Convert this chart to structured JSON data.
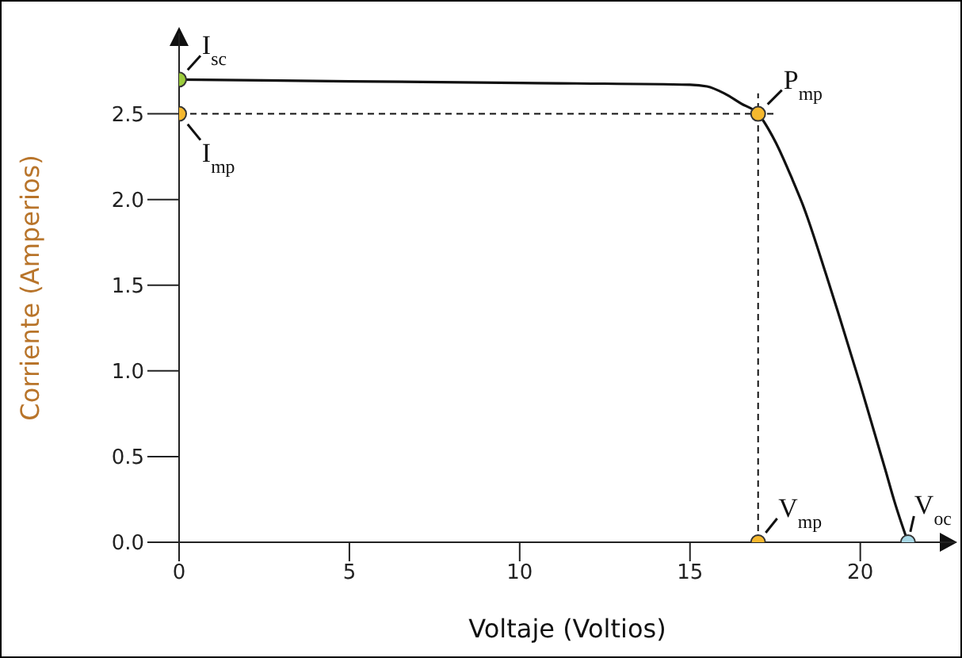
{
  "chart_data": {
    "type": "line",
    "xlabel": "Voltaje (Voltios)",
    "ylabel": "Corriente (Amperios)",
    "xlim": [
      0,
      22.8
    ],
    "ylim": [
      0,
      2.97
    ],
    "xticks": [
      0,
      5,
      10,
      15,
      20
    ],
    "yticks": [
      {
        "value": 0,
        "label": "0.0"
      },
      {
        "value": 0.5,
        "label": "0.5"
      },
      {
        "value": 1,
        "label": "1.0"
      },
      {
        "value": 1.5,
        "label": "1.5"
      },
      {
        "value": 2,
        "label": "2.0"
      },
      {
        "value": 2.5,
        "label": "2.5"
      }
    ],
    "series": [
      {
        "color": "#111111",
        "marker": "none",
        "line_style": "solid",
        "x": [
          0,
          5,
          10,
          15,
          15.5,
          16,
          16.5,
          17,
          17.5,
          18,
          18.33,
          19,
          19.35,
          20,
          20.74,
          21,
          21.4
        ],
        "values": [
          2.7,
          2.69,
          2.68,
          2.67,
          2.66,
          2.62,
          2.56,
          2.5,
          2.34,
          2.12,
          1.96,
          1.56,
          1.34,
          0.92,
          0.42,
          0.24,
          0
        ]
      },
      {
        "type": "scatter",
        "marker": "circle",
        "x": [
          0,
          0,
          17,
          17,
          21.4
        ],
        "values": [
          2.7,
          2.5,
          2.5,
          0,
          0
        ],
        "colors": [
          "#9ccc3c",
          "#f5b82e",
          "#f5b82e",
          "#f5b82e",
          "#a8d8e6"
        ]
      }
    ],
    "ref_lines": [
      {
        "axis": "y",
        "value": 2.5,
        "line_style": "dashed",
        "color": "#111111"
      },
      {
        "axis": "x",
        "value": 17,
        "line_style": "dashed",
        "color": "#111111"
      }
    ],
    "annotations": [
      {
        "text": "I$_{sc}$",
        "x": 0,
        "y": 2.7
      },
      {
        "text": "I$_{mp}$",
        "x": 0,
        "y": 2.5
      },
      {
        "text": "P$_{mp}$",
        "x": 17,
        "y": 2.5
      },
      {
        "text": "V$_{mp}$",
        "x": 17,
        "y": 0
      },
      {
        "text": "V$_{oc}$",
        "x": 21.4,
        "y": 0
      }
    ]
  }
}
